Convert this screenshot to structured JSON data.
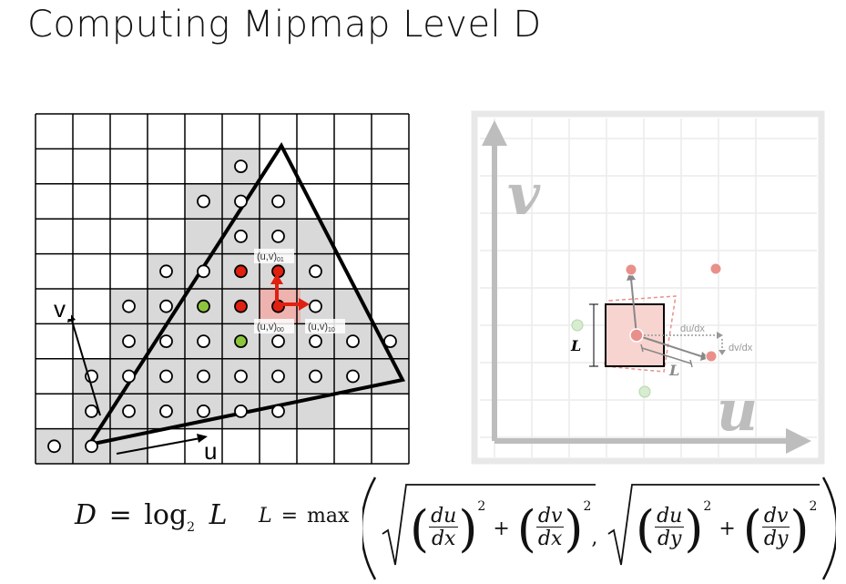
{
  "title": "Computing Mipmap Level D",
  "left_diagram": {
    "labels": {
      "uv01": "(u,v)",
      "uv01_sub": "01",
      "uv00": "(u,v)",
      "uv00_sub": "00",
      "uv10": "(u,v)",
      "uv10_sub": "10",
      "v_axis": "v",
      "u_axis": "u"
    },
    "colors": {
      "grid": "#000000",
      "shaded": "#d9d9d9",
      "red": "#e02010",
      "green": "#8cc43c",
      "highlight": "#f4a6a0"
    }
  },
  "right_diagram": {
    "labels": {
      "v_axis": "v",
      "u_axis": "u",
      "L_left": "L",
      "L_diag": "L",
      "du_dx": "du/dx",
      "dv_dx": "dv/dx"
    },
    "colors": {
      "frame": "#e8e8e8",
      "axis": "#bdbdbd",
      "pink": "#f8d4d0",
      "point": "#e9908a",
      "green": "#d7ecd0"
    }
  },
  "formula": {
    "D": "D",
    "equals": "=",
    "log": "log",
    "log_base": "2",
    "L": "L",
    "L2": "L",
    "equals2": "=",
    "max": "max",
    "du": "du",
    "dv": "dv",
    "dx": "dx",
    "dy": "dy",
    "sq": "2",
    "plus": "+",
    "comma": ","
  }
}
